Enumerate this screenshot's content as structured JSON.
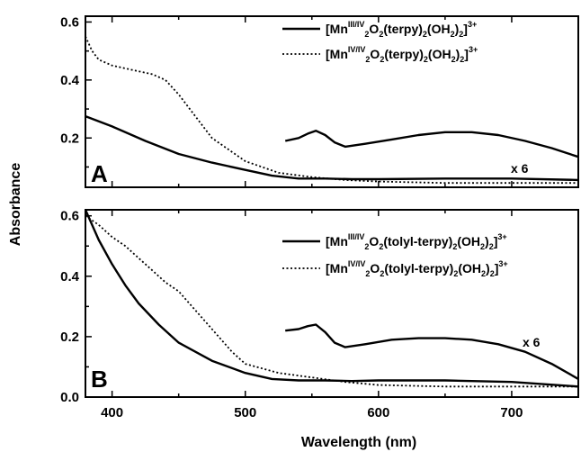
{
  "chart_data": [
    {
      "type": "line",
      "panel_label": "A",
      "xlim": [
        380,
        750
      ],
      "ylim": [
        0.03,
        0.62
      ],
      "yticks": [
        "0.2",
        "0.4",
        "0.6"
      ],
      "x_ticks": [
        "400",
        "500",
        "600",
        "700"
      ],
      "scale_annotation": "x 6",
      "legend": [
        {
          "prefix": "[Mn",
          "sup": "III/IV",
          "body": [
            [
              "2",
              "sub"
            ],
            [
              "O",
              ""
            ],
            [
              "2",
              "sub"
            ],
            [
              "(terpy)",
              ""
            ],
            [
              "2",
              "sub"
            ],
            [
              "(OH",
              ""
            ],
            [
              "2",
              "sub"
            ],
            [
              ")",
              ""
            ],
            [
              "2",
              "sub"
            ],
            [
              "]",
              ""
            ],
            [
              "3+",
              "sup"
            ]
          ],
          "style": "solid"
        },
        {
          "prefix": "[Mn",
          "sup": "IV/IV",
          "body": [
            [
              "2",
              "sub"
            ],
            [
              "O",
              ""
            ],
            [
              "2",
              "sub"
            ],
            [
              "(terpy)",
              ""
            ],
            [
              "2",
              "sub"
            ],
            [
              "(OH",
              ""
            ],
            [
              "2",
              "sub"
            ],
            [
              ")",
              ""
            ],
            [
              "2",
              "sub"
            ],
            [
              "]",
              ""
            ],
            [
              "3+",
              "sup"
            ]
          ],
          "style": "dotted"
        }
      ],
      "series": [
        {
          "style": "solid",
          "x": [
            380,
            400,
            425,
            450,
            475,
            500,
            520,
            540,
            560,
            580,
            600,
            650,
            700,
            750
          ],
          "y": [
            0.275,
            0.24,
            0.19,
            0.145,
            0.115,
            0.09,
            0.07,
            0.06,
            0.06,
            0.058,
            0.058,
            0.06,
            0.06,
            0.055
          ]
        },
        {
          "style": "dotted",
          "x": [
            380,
            385,
            390,
            400,
            410,
            420,
            430,
            440,
            450,
            460,
            475,
            500,
            525,
            550,
            575,
            600,
            650,
            700,
            750
          ],
          "y": [
            0.55,
            0.5,
            0.47,
            0.45,
            0.44,
            0.43,
            0.42,
            0.4,
            0.35,
            0.29,
            0.2,
            0.12,
            0.08,
            0.065,
            0.055,
            0.05,
            0.045,
            0.045,
            0.045
          ]
        },
        {
          "style": "solid",
          "x": [
            530,
            540,
            547,
            553,
            560,
            567,
            575,
            590,
            610,
            630,
            650,
            670,
            690,
            710,
            730,
            750
          ],
          "y": [
            0.19,
            0.2,
            0.215,
            0.225,
            0.21,
            0.185,
            0.17,
            0.18,
            0.195,
            0.21,
            0.22,
            0.22,
            0.21,
            0.19,
            0.165,
            0.135
          ]
        }
      ]
    },
    {
      "type": "line",
      "panel_label": "B",
      "xlim": [
        380,
        750
      ],
      "ylim": [
        0.0,
        0.62
      ],
      "yticks": [
        "0.0",
        "0.2",
        "0.4",
        "0.6"
      ],
      "x_ticks": [
        "400",
        "500",
        "600",
        "700"
      ],
      "scale_annotation": "x 6",
      "legend": [
        {
          "prefix": "[Mn",
          "sup": "III/IV",
          "body": [
            [
              "2",
              "sub"
            ],
            [
              "O",
              ""
            ],
            [
              "2",
              "sub"
            ],
            [
              "(tolyl-terpy)",
              ""
            ],
            [
              "2",
              "sub"
            ],
            [
              "(OH",
              ""
            ],
            [
              "2",
              "sub"
            ],
            [
              ")",
              ""
            ],
            [
              "2",
              "sub"
            ],
            [
              "]",
              ""
            ],
            [
              "3+",
              "sup"
            ]
          ],
          "style": "solid"
        },
        {
          "prefix": "[Mn",
          "sup": "IV/IV",
          "body": [
            [
              "2",
              "sub"
            ],
            [
              "O",
              ""
            ],
            [
              "2",
              "sub"
            ],
            [
              "(tolyl-terpy)",
              ""
            ],
            [
              "2",
              "sub"
            ],
            [
              "(OH",
              ""
            ],
            [
              "2",
              "sub"
            ],
            [
              ")",
              ""
            ],
            [
              "2",
              "sub"
            ],
            [
              "]",
              ""
            ],
            [
              "3+",
              "sup"
            ]
          ],
          "style": "dotted"
        }
      ],
      "series": [
        {
          "style": "solid",
          "x": [
            380,
            390,
            400,
            410,
            420,
            435,
            450,
            475,
            500,
            520,
            540,
            560,
            580,
            600,
            650,
            700,
            750
          ],
          "y": [
            0.62,
            0.52,
            0.44,
            0.37,
            0.31,
            0.24,
            0.18,
            0.12,
            0.08,
            0.06,
            0.055,
            0.055,
            0.053,
            0.055,
            0.055,
            0.05,
            0.035
          ]
        },
        {
          "style": "dotted",
          "x": [
            380,
            390,
            400,
            410,
            420,
            430,
            440,
            450,
            460,
            470,
            480,
            490,
            500,
            525,
            550,
            575,
            600,
            650,
            700,
            750
          ],
          "y": [
            0.6,
            0.57,
            0.53,
            0.5,
            0.46,
            0.42,
            0.38,
            0.35,
            0.3,
            0.25,
            0.2,
            0.15,
            0.11,
            0.08,
            0.065,
            0.05,
            0.04,
            0.035,
            0.035,
            0.035
          ]
        },
        {
          "style": "solid",
          "x": [
            530,
            540,
            547,
            553,
            560,
            567,
            575,
            590,
            610,
            630,
            650,
            670,
            690,
            710,
            730,
            750
          ],
          "y": [
            0.22,
            0.225,
            0.235,
            0.24,
            0.215,
            0.18,
            0.165,
            0.175,
            0.19,
            0.195,
            0.195,
            0.19,
            0.175,
            0.15,
            0.11,
            0.06
          ]
        }
      ]
    }
  ],
  "axes": {
    "xlabel": "Wavelength (nm)",
    "ylabel": "Absorbance"
  }
}
